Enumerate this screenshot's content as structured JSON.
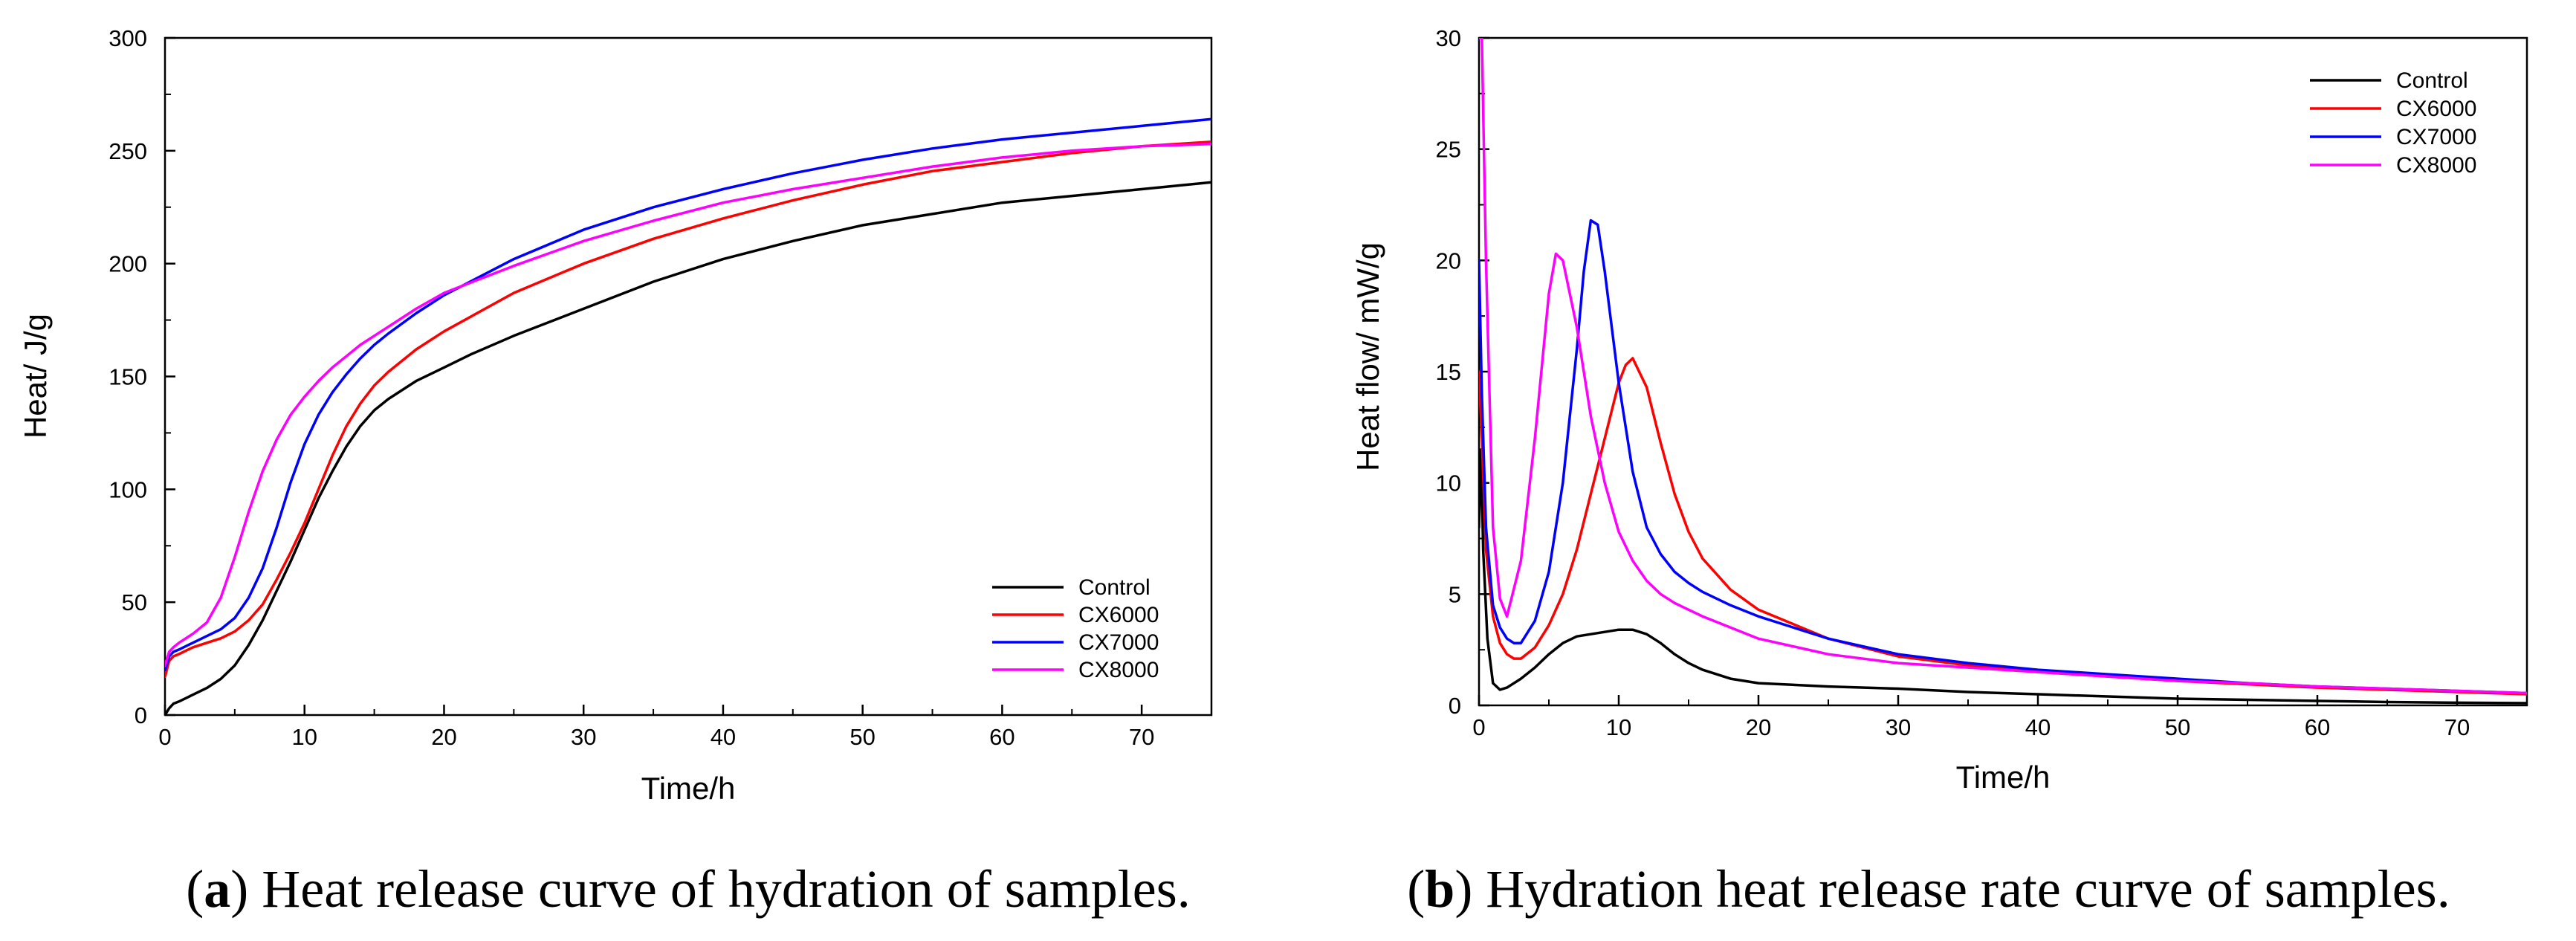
{
  "chart_data": [
    {
      "type": "line",
      "panel": "a",
      "caption_letter": "a",
      "caption": "Heat release curve of hydration of samples.",
      "xlabel": "Time/h",
      "ylabel": "Heat/ J/g",
      "xlim": [
        0,
        75
      ],
      "ylim": [
        0,
        300
      ],
      "xticks": [
        "0",
        "10",
        "20",
        "30",
        "40",
        "50",
        "60",
        "70"
      ],
      "yticks": [
        "0",
        "50",
        "100",
        "150",
        "200",
        "250",
        "300"
      ],
      "grid": false,
      "legend_position": "lower-right",
      "series": [
        {
          "name": "Control",
          "color": "#000000",
          "x": [
            0,
            0.3,
            0.6,
            1,
            2,
            3,
            4,
            5,
            6,
            7,
            8,
            9,
            10,
            11,
            12,
            13,
            14,
            15,
            16,
            18,
            20,
            22,
            25,
            30,
            35,
            40,
            45,
            50,
            55,
            60,
            65,
            70,
            75
          ],
          "y": [
            0,
            3,
            5,
            6,
            9,
            12,
            16,
            22,
            31,
            42,
            55,
            68,
            82,
            96,
            108,
            119,
            128,
            135,
            140,
            148,
            154,
            160,
            168,
            180,
            192,
            202,
            210,
            217,
            222,
            227,
            230,
            233,
            236
          ]
        },
        {
          "name": "CX6000",
          "color": "#ff0000",
          "x": [
            0,
            0.3,
            0.6,
            1,
            2,
            3,
            4,
            5,
            6,
            7,
            8,
            9,
            10,
            11,
            12,
            13,
            14,
            15,
            16,
            18,
            20,
            25,
            30,
            35,
            40,
            45,
            50,
            55,
            60,
            65,
            70,
            75
          ],
          "y": [
            17,
            24,
            26,
            27,
            30,
            32,
            34,
            37,
            42,
            49,
            60,
            72,
            85,
            100,
            115,
            128,
            138,
            146,
            152,
            162,
            170,
            187,
            200,
            211,
            220,
            228,
            235,
            241,
            245,
            249,
            252,
            254
          ]
        },
        {
          "name": "CX7000",
          "color": "#0000ff",
          "x": [
            0,
            0.3,
            0.6,
            1,
            2,
            3,
            4,
            5,
            6,
            7,
            8,
            9,
            10,
            11,
            12,
            13,
            14,
            15,
            16,
            18,
            20,
            25,
            30,
            35,
            40,
            45,
            50,
            55,
            60,
            65,
            70,
            75
          ],
          "y": [
            20,
            26,
            28,
            29,
            32,
            35,
            38,
            43,
            52,
            65,
            83,
            103,
            120,
            133,
            143,
            151,
            158,
            164,
            169,
            178,
            186,
            202,
            215,
            225,
            233,
            240,
            246,
            251,
            255,
            258,
            261,
            264
          ]
        },
        {
          "name": "CX8000",
          "color": "#ff00ff",
          "x": [
            0,
            0.3,
            0.6,
            1,
            2,
            3,
            4,
            5,
            6,
            7,
            8,
            9,
            10,
            11,
            12,
            13,
            14,
            15,
            16,
            18,
            20,
            25,
            30,
            35,
            40,
            45,
            50,
            55,
            60,
            65,
            70,
            75
          ],
          "y": [
            22,
            28,
            30,
            32,
            36,
            41,
            52,
            70,
            90,
            108,
            122,
            133,
            141,
            148,
            154,
            159,
            164,
            168,
            172,
            180,
            187,
            199,
            210,
            219,
            227,
            233,
            238,
            243,
            247,
            250,
            252,
            253
          ]
        }
      ]
    },
    {
      "type": "line",
      "panel": "b",
      "caption_letter": "b",
      "caption": "Hydration heat release rate curve of samples.",
      "xlabel": "Time/h",
      "ylabel": "Heat flow/ mW/g",
      "xlim": [
        0,
        75
      ],
      "ylim": [
        0,
        30
      ],
      "xticks": [
        "0",
        "10",
        "20",
        "30",
        "40",
        "50",
        "60",
        "70"
      ],
      "yticks": [
        "0",
        "5",
        "10",
        "15",
        "20",
        "25",
        "30"
      ],
      "grid": false,
      "legend_position": "top-right",
      "series": [
        {
          "name": "Control",
          "color": "#000000",
          "x": [
            0,
            0.15,
            0.3,
            0.6,
            1,
            1.5,
            2,
            3,
            4,
            5,
            6,
            7,
            8,
            9,
            10,
            11,
            12,
            13,
            14,
            15,
            16,
            18,
            20,
            25,
            30,
            35,
            40,
            45,
            50,
            55,
            60,
            65,
            70,
            75
          ],
          "y": [
            8,
            11.5,
            7,
            3,
            1,
            0.7,
            0.8,
            1.2,
            1.7,
            2.3,
            2.8,
            3.1,
            3.2,
            3.3,
            3.4,
            3.4,
            3.2,
            2.8,
            2.3,
            1.9,
            1.6,
            1.2,
            1.0,
            0.85,
            0.75,
            0.6,
            0.5,
            0.4,
            0.3,
            0.25,
            0.2,
            0.15,
            0.12,
            0.1
          ]
        },
        {
          "name": "CX6000",
          "color": "#ff0000",
          "x": [
            0,
            0.2,
            0.5,
            1,
            1.5,
            2,
            2.5,
            3,
            4,
            5,
            6,
            7,
            8,
            9,
            10,
            10.5,
            11,
            12,
            13,
            14,
            15,
            16,
            18,
            20,
            25,
            30,
            35,
            40,
            45,
            50,
            55,
            60,
            65,
            70,
            75
          ],
          "y": [
            15,
            12,
            7,
            4,
            2.8,
            2.3,
            2.1,
            2.1,
            2.6,
            3.6,
            5.0,
            7.0,
            9.5,
            12.0,
            14.5,
            15.3,
            15.6,
            14.3,
            11.8,
            9.5,
            7.8,
            6.6,
            5.2,
            4.3,
            3.0,
            2.2,
            1.8,
            1.5,
            1.3,
            1.1,
            0.95,
            0.8,
            0.7,
            0.6,
            0.5
          ]
        },
        {
          "name": "CX7000",
          "color": "#0000ff",
          "x": [
            0,
            0.2,
            0.5,
            1,
            1.5,
            2,
            2.5,
            3,
            4,
            5,
            6,
            7,
            7.5,
            8,
            8.5,
            9,
            10,
            11,
            12,
            13,
            14,
            15,
            16,
            18,
            20,
            25,
            30,
            35,
            40,
            45,
            50,
            55,
            60,
            65,
            70,
            75
          ],
          "y": [
            20,
            14,
            8,
            4.5,
            3.5,
            3.0,
            2.8,
            2.8,
            3.8,
            6.0,
            10.0,
            16.0,
            19.5,
            21.8,
            21.6,
            19.5,
            14.5,
            10.5,
            8.0,
            6.8,
            6.0,
            5.5,
            5.1,
            4.5,
            4.0,
            3.0,
            2.3,
            1.9,
            1.6,
            1.4,
            1.2,
            1.0,
            0.85,
            0.75,
            0.65,
            0.55
          ]
        },
        {
          "name": "CX8000",
          "color": "#ff00ff",
          "x": [
            0,
            0.2,
            0.5,
            1,
            1.5,
            2,
            3,
            4,
            5,
            5.5,
            6,
            7,
            8,
            9,
            10,
            11,
            12,
            13,
            14,
            15,
            16,
            18,
            20,
            25,
            30,
            35,
            40,
            45,
            50,
            55,
            60,
            65,
            70,
            75
          ],
          "y": [
            30,
            30,
            20,
            8,
            4.8,
            4.0,
            6.5,
            12.0,
            18.5,
            20.3,
            20.0,
            17.0,
            13.0,
            10.0,
            7.8,
            6.5,
            5.6,
            5.0,
            4.6,
            4.3,
            4.0,
            3.5,
            3.0,
            2.3,
            1.9,
            1.7,
            1.5,
            1.3,
            1.1,
            1.0,
            0.85,
            0.75,
            0.65,
            0.55
          ]
        }
      ]
    }
  ]
}
